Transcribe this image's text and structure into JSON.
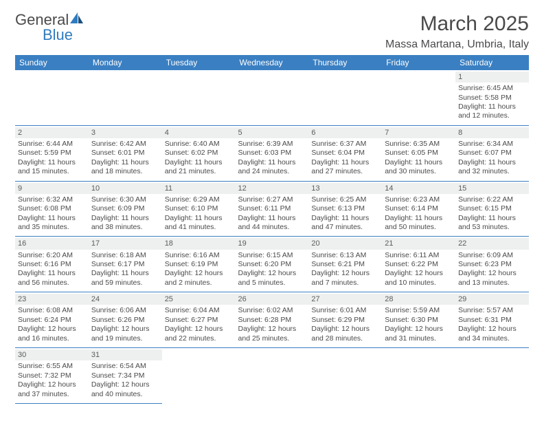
{
  "colors": {
    "header_bg": "#3a7fc2",
    "header_text": "#ffffff",
    "daynum_bg": "#eef0ef",
    "text": "#4a4a4a",
    "border": "#3a7fc2",
    "logo_general": "#4a4a4a",
    "logo_blue": "#2f7bbf",
    "logo_shape1": "#2f7bbf",
    "logo_shape2": "#1a4f80"
  },
  "logo": {
    "part1": "General",
    "part2": "Blue"
  },
  "title": "March 2025",
  "location": "Massa Martana, Umbria, Italy",
  "day_headers": [
    "Sunday",
    "Monday",
    "Tuesday",
    "Wednesday",
    "Thursday",
    "Friday",
    "Saturday"
  ],
  "weeks": [
    [
      null,
      null,
      null,
      null,
      null,
      null,
      {
        "n": "1",
        "sunrise": "Sunrise: 6:45 AM",
        "sunset": "Sunset: 5:58 PM",
        "daylight": "Daylight: 11 hours and 12 minutes."
      }
    ],
    [
      {
        "n": "2",
        "sunrise": "Sunrise: 6:44 AM",
        "sunset": "Sunset: 5:59 PM",
        "daylight": "Daylight: 11 hours and 15 minutes."
      },
      {
        "n": "3",
        "sunrise": "Sunrise: 6:42 AM",
        "sunset": "Sunset: 6:01 PM",
        "daylight": "Daylight: 11 hours and 18 minutes."
      },
      {
        "n": "4",
        "sunrise": "Sunrise: 6:40 AM",
        "sunset": "Sunset: 6:02 PM",
        "daylight": "Daylight: 11 hours and 21 minutes."
      },
      {
        "n": "5",
        "sunrise": "Sunrise: 6:39 AM",
        "sunset": "Sunset: 6:03 PM",
        "daylight": "Daylight: 11 hours and 24 minutes."
      },
      {
        "n": "6",
        "sunrise": "Sunrise: 6:37 AM",
        "sunset": "Sunset: 6:04 PM",
        "daylight": "Daylight: 11 hours and 27 minutes."
      },
      {
        "n": "7",
        "sunrise": "Sunrise: 6:35 AM",
        "sunset": "Sunset: 6:05 PM",
        "daylight": "Daylight: 11 hours and 30 minutes."
      },
      {
        "n": "8",
        "sunrise": "Sunrise: 6:34 AM",
        "sunset": "Sunset: 6:07 PM",
        "daylight": "Daylight: 11 hours and 32 minutes."
      }
    ],
    [
      {
        "n": "9",
        "sunrise": "Sunrise: 6:32 AM",
        "sunset": "Sunset: 6:08 PM",
        "daylight": "Daylight: 11 hours and 35 minutes."
      },
      {
        "n": "10",
        "sunrise": "Sunrise: 6:30 AM",
        "sunset": "Sunset: 6:09 PM",
        "daylight": "Daylight: 11 hours and 38 minutes."
      },
      {
        "n": "11",
        "sunrise": "Sunrise: 6:29 AM",
        "sunset": "Sunset: 6:10 PM",
        "daylight": "Daylight: 11 hours and 41 minutes."
      },
      {
        "n": "12",
        "sunrise": "Sunrise: 6:27 AM",
        "sunset": "Sunset: 6:11 PM",
        "daylight": "Daylight: 11 hours and 44 minutes."
      },
      {
        "n": "13",
        "sunrise": "Sunrise: 6:25 AM",
        "sunset": "Sunset: 6:13 PM",
        "daylight": "Daylight: 11 hours and 47 minutes."
      },
      {
        "n": "14",
        "sunrise": "Sunrise: 6:23 AM",
        "sunset": "Sunset: 6:14 PM",
        "daylight": "Daylight: 11 hours and 50 minutes."
      },
      {
        "n": "15",
        "sunrise": "Sunrise: 6:22 AM",
        "sunset": "Sunset: 6:15 PM",
        "daylight": "Daylight: 11 hours and 53 minutes."
      }
    ],
    [
      {
        "n": "16",
        "sunrise": "Sunrise: 6:20 AM",
        "sunset": "Sunset: 6:16 PM",
        "daylight": "Daylight: 11 hours and 56 minutes."
      },
      {
        "n": "17",
        "sunrise": "Sunrise: 6:18 AM",
        "sunset": "Sunset: 6:17 PM",
        "daylight": "Daylight: 11 hours and 59 minutes."
      },
      {
        "n": "18",
        "sunrise": "Sunrise: 6:16 AM",
        "sunset": "Sunset: 6:19 PM",
        "daylight": "Daylight: 12 hours and 2 minutes."
      },
      {
        "n": "19",
        "sunrise": "Sunrise: 6:15 AM",
        "sunset": "Sunset: 6:20 PM",
        "daylight": "Daylight: 12 hours and 5 minutes."
      },
      {
        "n": "20",
        "sunrise": "Sunrise: 6:13 AM",
        "sunset": "Sunset: 6:21 PM",
        "daylight": "Daylight: 12 hours and 7 minutes."
      },
      {
        "n": "21",
        "sunrise": "Sunrise: 6:11 AM",
        "sunset": "Sunset: 6:22 PM",
        "daylight": "Daylight: 12 hours and 10 minutes."
      },
      {
        "n": "22",
        "sunrise": "Sunrise: 6:09 AM",
        "sunset": "Sunset: 6:23 PM",
        "daylight": "Daylight: 12 hours and 13 minutes."
      }
    ],
    [
      {
        "n": "23",
        "sunrise": "Sunrise: 6:08 AM",
        "sunset": "Sunset: 6:24 PM",
        "daylight": "Daylight: 12 hours and 16 minutes."
      },
      {
        "n": "24",
        "sunrise": "Sunrise: 6:06 AM",
        "sunset": "Sunset: 6:26 PM",
        "daylight": "Daylight: 12 hours and 19 minutes."
      },
      {
        "n": "25",
        "sunrise": "Sunrise: 6:04 AM",
        "sunset": "Sunset: 6:27 PM",
        "daylight": "Daylight: 12 hours and 22 minutes."
      },
      {
        "n": "26",
        "sunrise": "Sunrise: 6:02 AM",
        "sunset": "Sunset: 6:28 PM",
        "daylight": "Daylight: 12 hours and 25 minutes."
      },
      {
        "n": "27",
        "sunrise": "Sunrise: 6:01 AM",
        "sunset": "Sunset: 6:29 PM",
        "daylight": "Daylight: 12 hours and 28 minutes."
      },
      {
        "n": "28",
        "sunrise": "Sunrise: 5:59 AM",
        "sunset": "Sunset: 6:30 PM",
        "daylight": "Daylight: 12 hours and 31 minutes."
      },
      {
        "n": "29",
        "sunrise": "Sunrise: 5:57 AM",
        "sunset": "Sunset: 6:31 PM",
        "daylight": "Daylight: 12 hours and 34 minutes."
      }
    ],
    [
      {
        "n": "30",
        "sunrise": "Sunrise: 6:55 AM",
        "sunset": "Sunset: 7:32 PM",
        "daylight": "Daylight: 12 hours and 37 minutes."
      },
      {
        "n": "31",
        "sunrise": "Sunrise: 6:54 AM",
        "sunset": "Sunset: 7:34 PM",
        "daylight": "Daylight: 12 hours and 40 minutes."
      },
      null,
      null,
      null,
      null,
      null
    ]
  ]
}
